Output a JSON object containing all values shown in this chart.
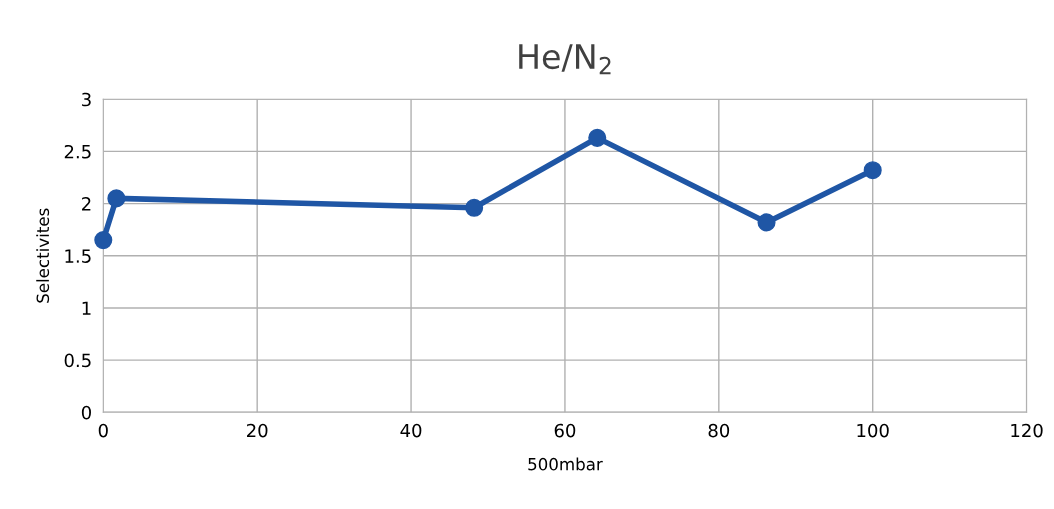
{
  "chart_data": {
    "type": "line",
    "title": "He/N$_{2}$",
    "xlabel": "500mbar",
    "ylabel": "Selectivites",
    "series": [
      {
        "color": "#1f56a5",
        "x": [
          0,
          1.7,
          48.2,
          64.2,
          86.2,
          100
        ],
        "values": [
          1.65,
          2.05,
          1.96,
          2.63,
          1.82,
          2.32
        ]
      }
    ],
    "xlim": [
      0,
      120
    ],
    "xticks": [
      0,
      20,
      40,
      60,
      80,
      100,
      120
    ],
    "ylim": [
      0,
      3
    ],
    "yticks": [
      0,
      0.5,
      1,
      1.5,
      2,
      2.5,
      3
    ],
    "grid": true,
    "marker": "circle",
    "line_style": "solid"
  }
}
